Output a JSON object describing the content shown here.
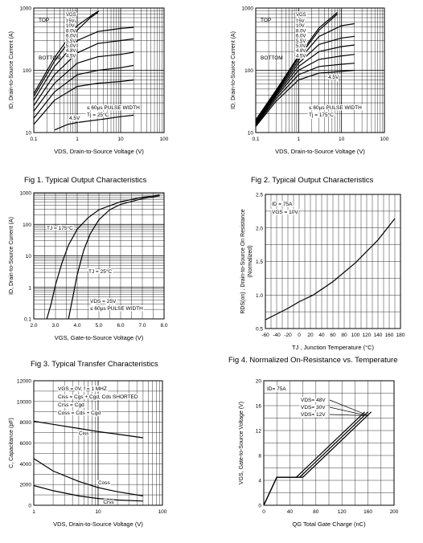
{
  "captions": {
    "fig1": "Fig 1.  Typical Output Characteristics",
    "fig2": "Fig 2.  Typical Output Characteristics",
    "fig3": "Fig 3.  Typical Transfer Characteristics",
    "fig4": "Fig 4.  Normalized On-Resistance vs. Temperature"
  },
  "chart_data": [
    {
      "id": "fig1",
      "type": "line",
      "title": "",
      "xscale": "log",
      "yscale": "log",
      "xlim": [
        0.1,
        100
      ],
      "ylim": [
        10,
        1000
      ],
      "xticks": [
        0.1,
        1,
        10,
        100
      ],
      "xtick_labels": [
        "0.1",
        "1",
        "10",
        "100"
      ],
      "yticks": [
        10,
        100,
        1000
      ],
      "ytick_labels": [
        "10",
        "100",
        "1000"
      ],
      "xlabel": "VDS, Drain-to-Source Voltage (V)",
      "ylabel": "ID, Drain-to-Source Current (A)",
      "legend_header": "VGS",
      "legend_values": [
        "15V",
        "10V",
        "8.0V",
        "6.0V",
        "5.5V",
        "5.0V",
        "4.8V",
        "4.5V"
      ],
      "legend_top": "TOP",
      "legend_bottom": "BOTTOM",
      "annotations": [
        "≤ 60µs PULSE WIDTH",
        "Tj = 25°C"
      ],
      "curve_label": "4.5V",
      "grid": true,
      "series": [
        {
          "values": [
            [
              0.1,
              42
            ],
            [
              0.3,
              160
            ],
            [
              1,
              520
            ],
            [
              2.5,
              820
            ],
            [
              3.2,
              900
            ]
          ]
        },
        {
          "values": [
            [
              0.1,
              38
            ],
            [
              0.3,
              140
            ],
            [
              1,
              440
            ],
            [
              2,
              700
            ],
            [
              3,
              850
            ]
          ]
        },
        {
          "values": [
            [
              0.1,
              33
            ],
            [
              0.3,
              115
            ],
            [
              1,
              300
            ],
            [
              3,
              420
            ],
            [
              10,
              470
            ],
            [
              20,
              490
            ]
          ]
        },
        {
          "values": [
            [
              0.1,
              27
            ],
            [
              0.3,
              85
            ],
            [
              1,
              190
            ],
            [
              3,
              270
            ],
            [
              10,
              300
            ],
            [
              20,
              320
            ]
          ]
        },
        {
          "values": [
            [
              0.1,
              22
            ],
            [
              0.3,
              62
            ],
            [
              1,
              130
            ],
            [
              3,
              165
            ],
            [
              10,
              180
            ],
            [
              20,
              195
            ]
          ]
        },
        {
          "values": [
            [
              0.1,
              17
            ],
            [
              0.3,
              45
            ],
            [
              1,
              85
            ],
            [
              3,
              100
            ],
            [
              10,
              110
            ],
            [
              20,
              120
            ]
          ]
        },
        {
          "values": [
            [
              0.1,
              13.5
            ],
            [
              0.3,
              33
            ],
            [
              1,
              55
            ],
            [
              3,
              62
            ],
            [
              10,
              66
            ],
            [
              20,
              70
            ]
          ]
        },
        {
          "values": [
            [
              0.3,
              11
            ],
            [
              0.6,
              13.5
            ],
            [
              1,
              14.5
            ],
            [
              3,
              16
            ],
            [
              10,
              18
            ],
            [
              20,
              19
            ]
          ]
        }
      ]
    },
    {
      "id": "fig2",
      "type": "line",
      "title": "",
      "xscale": "log",
      "yscale": "log",
      "xlim": [
        0.1,
        100
      ],
      "ylim": [
        10,
        1000
      ],
      "xticks": [
        0.1,
        1,
        10,
        100
      ],
      "xtick_labels": [
        "0.1",
        "1",
        "10",
        "100"
      ],
      "yticks": [
        10,
        100,
        1000
      ],
      "ytick_labels": [
        "10",
        "100",
        "1000"
      ],
      "xlabel": "VDS, Drain-to-Source Voltage (V)",
      "ylabel": "ID, Drain-to-Source Current (A)",
      "legend_header": "VGS",
      "legend_values": [
        "15V",
        "10V",
        "8.0V",
        "6.0V",
        "5.5V",
        "5.0V",
        "4.8V",
        "4.5V"
      ],
      "legend_top": "TOP",
      "legend_bottom": "BOTTOM",
      "annotations": [
        "≤ 60µs PULSE WIDTH",
        "Tj = 175°C"
      ],
      "curve_label": "4.5V",
      "grid": true,
      "series": [
        {
          "values": [
            [
              0.1,
              16
            ],
            [
              0.3,
              48
            ],
            [
              1,
              170
            ],
            [
              3,
              480
            ],
            [
              8,
              850
            ]
          ]
        },
        {
          "values": [
            [
              0.1,
              15.5
            ],
            [
              0.3,
              46
            ],
            [
              1,
              160
            ],
            [
              3,
              440
            ],
            [
              8,
              800
            ]
          ]
        },
        {
          "values": [
            [
              0.1,
              15
            ],
            [
              0.3,
              44
            ],
            [
              1,
              145
            ],
            [
              3,
              350
            ],
            [
              10,
              520
            ],
            [
              20,
              560
            ]
          ]
        },
        {
          "values": [
            [
              0.1,
              14.5
            ],
            [
              0.3,
              42
            ],
            [
              1,
              130
            ],
            [
              3,
              260
            ],
            [
              10,
              330
            ],
            [
              20,
              350
            ]
          ]
        },
        {
          "values": [
            [
              0.1,
              14
            ],
            [
              0.3,
              40
            ],
            [
              1,
              115
            ],
            [
              3,
              200
            ],
            [
              10,
              240
            ],
            [
              20,
              255
            ]
          ]
        },
        {
          "values": [
            [
              0.1,
              13.5
            ],
            [
              0.3,
              38
            ],
            [
              1,
              100
            ],
            [
              3,
              150
            ],
            [
              10,
              170
            ],
            [
              20,
              180
            ]
          ]
        },
        {
          "values": [
            [
              0.1,
              13
            ],
            [
              0.3,
              35
            ],
            [
              1,
              85
            ],
            [
              3,
              115
            ],
            [
              10,
              125
            ],
            [
              20,
              130
            ]
          ]
        },
        {
          "values": [
            [
              0.1,
              12.5
            ],
            [
              0.3,
              32
            ],
            [
              1,
              70
            ],
            [
              3,
              90
            ],
            [
              10,
              96
            ],
            [
              20,
              100
            ]
          ]
        }
      ]
    },
    {
      "id": "fig3",
      "type": "line",
      "title": "",
      "xscale": "linear",
      "yscale": "log",
      "xlim": [
        2.0,
        8.0
      ],
      "ylim": [
        0.1,
        1000
      ],
      "xticks": [
        2,
        3,
        4,
        5,
        6,
        7,
        8
      ],
      "xtick_labels": [
        "2.0",
        "3.0",
        "4.0",
        "5.0",
        "6.0",
        "7.0",
        "8.0"
      ],
      "yticks": [
        0.1,
        1,
        10,
        100,
        1000
      ],
      "ytick_labels": [
        "0.1",
        "1",
        "10",
        "100",
        "1000"
      ],
      "xlabel": "VGS, Gate-to-Source Voltage (V)",
      "ylabel": "ID, Drain-to-Source Current (A)",
      "annotations": [
        "VDS = 25V",
        "≤ 60µs PULSE WIDTH"
      ],
      "curve_labels": [
        "TJ = 175°C",
        "TJ = 25°C"
      ],
      "grid": true,
      "series": [
        {
          "name": "TJ = 175°C",
          "values": [
            [
              2.6,
              0.1
            ],
            [
              2.8,
              0.3
            ],
            [
              3.0,
              1.2
            ],
            [
              3.3,
              6
            ],
            [
              3.6,
              22
            ],
            [
              4.0,
              70
            ],
            [
              4.5,
              160
            ],
            [
              5.0,
              290
            ],
            [
              6.0,
              520
            ],
            [
              7.0,
              720
            ],
            [
              7.8,
              850
            ]
          ]
        },
        {
          "name": "TJ = 25°C",
          "values": [
            [
              3.6,
              0.1
            ],
            [
              3.8,
              0.5
            ],
            [
              4.0,
              2.5
            ],
            [
              4.3,
              15
            ],
            [
              4.6,
              50
            ],
            [
              5.0,
              140
            ],
            [
              5.5,
              290
            ],
            [
              6.0,
              430
            ],
            [
              7.0,
              650
            ],
            [
              7.8,
              800
            ]
          ]
        }
      ]
    },
    {
      "id": "fig4",
      "type": "line",
      "title": "",
      "xscale": "linear",
      "yscale": "linear",
      "xlim": [
        -60,
        180
      ],
      "ylim": [
        0.5,
        2.5
      ],
      "xticks": [
        -60,
        -40,
        -20,
        0,
        20,
        40,
        60,
        80,
        100,
        120,
        140,
        160,
        180
      ],
      "xtick_labels": [
        "-60",
        "-40",
        "-20",
        "0",
        "20",
        "40",
        "60",
        "80",
        "100",
        "120",
        "140",
        "160",
        "180"
      ],
      "yticks": [
        0.5,
        1.0,
        1.5,
        2.0,
        2.5
      ],
      "ytick_labels": [
        "0.5",
        "1.0",
        "1.5",
        "2.0",
        "2.5"
      ],
      "xlabel": "TJ , Junction Temperature (°C)",
      "ylabel": "RDS(on) , Drain-to-Source On Resistance",
      "ylabel2": "(Normalized)",
      "annotations": [
        "ID = 75A",
        "VGS = 10V"
      ],
      "grid": true,
      "series": [
        {
          "values": [
            [
              -60,
              0.63
            ],
            [
              -20,
              0.8
            ],
            [
              0,
              0.9
            ],
            [
              25,
              1.0
            ],
            [
              60,
              1.2
            ],
            [
              100,
              1.48
            ],
            [
              140,
              1.82
            ],
            [
              170,
              2.14
            ]
          ]
        }
      ]
    },
    {
      "id": "fig5",
      "type": "line",
      "title": "",
      "xscale": "log",
      "yscale": "linear",
      "xlim": [
        1,
        100
      ],
      "ylim": [
        0,
        12000
      ],
      "xticks": [
        1,
        10,
        100
      ],
      "xtick_labels": [
        "1",
        "10",
        "100"
      ],
      "yticks": [
        0,
        2000,
        4000,
        6000,
        8000,
        10000,
        12000
      ],
      "ytick_labels": [
        "0",
        "2000",
        "4000",
        "6000",
        "8000",
        "10000",
        "12000"
      ],
      "xlabel": "VDS, Drain-to-Source Voltage (V)",
      "ylabel": "C, Capacitance (pF)",
      "conditions": [
        "VGS  =  0V,       f = 1 MHZ",
        "Ciss   =  Cgs + Cgd,  Cds SHORTED",
        "Crss   =  Cgd",
        "Coss   =  Cds + Cgd"
      ],
      "grid": true,
      "series": [
        {
          "name": "Ciss",
          "values": [
            [
              1,
              8100
            ],
            [
              2,
              7800
            ],
            [
              5,
              7400
            ],
            [
              10,
              7100
            ],
            [
              20,
              6850
            ],
            [
              50,
              6500
            ]
          ]
        },
        {
          "name": "Coss",
          "values": [
            [
              1,
              4500
            ],
            [
              2,
              3300
            ],
            [
              5,
              2300
            ],
            [
              10,
              1700
            ],
            [
              20,
              1300
            ],
            [
              50,
              900
            ]
          ]
        },
        {
          "name": "Crss",
          "values": [
            [
              1,
              1900
            ],
            [
              2,
              1400
            ],
            [
              5,
              900
            ],
            [
              10,
              650
            ],
            [
              20,
              500
            ],
            [
              50,
              400
            ]
          ]
        }
      ]
    },
    {
      "id": "fig6",
      "type": "line",
      "title": "",
      "xscale": "linear",
      "yscale": "linear",
      "xlim": [
        0,
        200
      ],
      "ylim": [
        0,
        20
      ],
      "xticks": [
        0,
        40,
        80,
        120,
        160,
        200
      ],
      "xtick_labels": [
        "0",
        "40",
        "80",
        "120",
        "160",
        "200"
      ],
      "yticks": [
        0,
        4,
        8,
        12,
        16,
        20
      ],
      "ytick_labels": [
        "0",
        "4",
        "8",
        "12",
        "16",
        "20"
      ],
      "xlabel": "QG  Total Gate Charge (nC)",
      "ylabel": "VGS, Gate-to-Source Voltage (V)",
      "annotations": [
        "ID= 75A"
      ],
      "grid": true,
      "series": [
        {
          "name": "VDS= 48V",
          "values": [
            [
              0,
              0
            ],
            [
              20,
              4.5
            ],
            [
              60,
              4.5
            ],
            [
              165,
              15
            ]
          ]
        },
        {
          "name": "VDS= 30V",
          "values": [
            [
              0,
              0
            ],
            [
              20,
              4.5
            ],
            [
              55,
              4.5
            ],
            [
              160,
              15
            ]
          ]
        },
        {
          "name": "VDS= 12V",
          "values": [
            [
              0,
              0
            ],
            [
              20,
              4.5
            ],
            [
              50,
              4.5
            ],
            [
              155,
              15
            ]
          ]
        }
      ]
    }
  ]
}
